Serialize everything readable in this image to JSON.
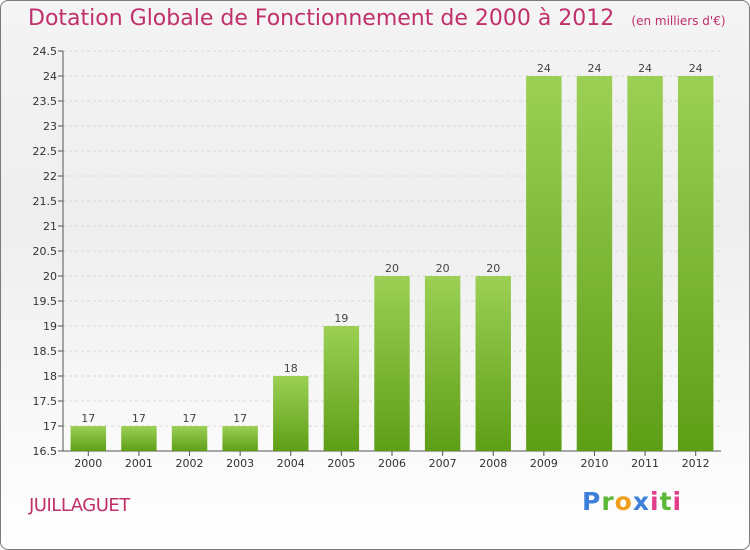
{
  "header": {
    "title": "Dotation Globale de Fonctionnement de 2000 à 2012",
    "subtitle": "(en milliers d'€)"
  },
  "footer": {
    "town": "JUILLAGUET",
    "logo": "Proxiti"
  },
  "colors": {
    "title": "#c0306a",
    "bar_light": "#9bd055",
    "bar_dark": "#5e9e16",
    "grid": "#d8d8d8"
  },
  "chart_data": {
    "type": "bar",
    "title": "Dotation Globale de Fonctionnement de 2000 à 2012",
    "subtitle": "(en milliers d'€)",
    "categories": [
      "2000",
      "2001",
      "2002",
      "2003",
      "2004",
      "2005",
      "2006",
      "2007",
      "2008",
      "2009",
      "2010",
      "2011",
      "2012"
    ],
    "values": [
      17,
      17,
      17,
      17,
      18,
      19,
      20,
      20,
      20,
      24,
      24,
      24,
      24
    ],
    "data_labels": [
      "17",
      "17",
      "17",
      "17",
      "18",
      "19",
      "20",
      "20",
      "20",
      "24",
      "24",
      "24",
      "24"
    ],
    "ylim": [
      16.5,
      24.5
    ],
    "yticks": [
      16.5,
      17,
      17.5,
      18,
      18.5,
      19,
      19.5,
      20,
      20.5,
      21,
      21.5,
      22,
      22.5,
      23,
      23.5,
      24,
      24.5
    ],
    "xlabel": "",
    "ylabel": "",
    "grid": true
  }
}
